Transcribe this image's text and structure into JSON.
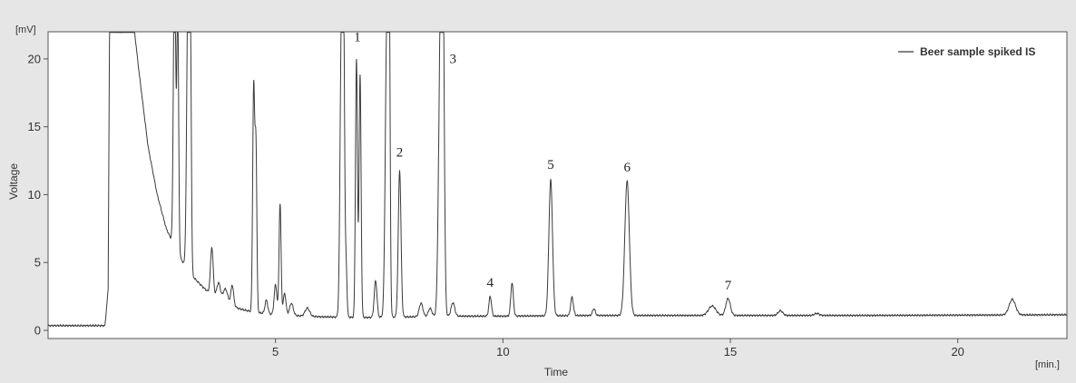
{
  "chart_data": {
    "type": "line",
    "title": "",
    "xlabel": "Time",
    "ylabel": "Voltage",
    "x_unit": "[min.]",
    "y_unit": "[mV]",
    "xlim": [
      0,
      22.4
    ],
    "ylim": [
      -0.6,
      22
    ],
    "x_ticks": [
      5,
      10,
      15,
      20
    ],
    "y_ticks": [
      0,
      5,
      10,
      15,
      20
    ],
    "grid": false,
    "legend_position": "top-right",
    "colors": {
      "line": "#3a3a3a",
      "axis": "#555555",
      "plot_background": "#ffffff",
      "page_background": "#e6e6e6"
    },
    "series": [
      {
        "name": "Beer sample spiked IS",
        "baseline": [
          [
            0,
            0.35
          ],
          [
            1.25,
            0.35
          ],
          [
            1.32,
            3
          ],
          [
            1.35,
            22
          ],
          [
            1.9,
            22
          ],
          [
            2.0,
            19
          ],
          [
            2.2,
            13.5
          ],
          [
            2.4,
            10
          ],
          [
            2.6,
            7.5
          ],
          [
            2.8,
            6
          ],
          [
            3.0,
            4.8
          ],
          [
            3.2,
            3.9
          ],
          [
            3.4,
            3.2
          ],
          [
            3.6,
            2.6
          ],
          [
            3.8,
            2.2
          ],
          [
            4.0,
            1.9
          ],
          [
            4.2,
            1.6
          ],
          [
            4.5,
            1.35
          ],
          [
            5.0,
            1.15
          ],
          [
            6.0,
            1.0
          ],
          [
            7.0,
            0.95
          ],
          [
            8.0,
            1.0
          ],
          [
            9.0,
            1.05
          ],
          [
            10.0,
            1.05
          ],
          [
            12.0,
            1.1
          ],
          [
            15.0,
            1.1
          ],
          [
            18.0,
            1.1
          ],
          [
            22.4,
            1.15
          ]
        ],
        "peaks": [
          {
            "t": 2.78,
            "h": 22,
            "w": 0.025
          },
          {
            "t": 2.85,
            "h": 18,
            "w": 0.02
          },
          {
            "t": 3.08,
            "h": 22,
            "w": 0.03
          },
          {
            "t": 3.13,
            "h": 15,
            "w": 0.02
          },
          {
            "t": 3.6,
            "h": 3.5,
            "w": 0.03
          },
          {
            "t": 3.75,
            "h": 1.2,
            "w": 0.04
          },
          {
            "t": 3.9,
            "h": 1.0,
            "w": 0.05
          },
          {
            "t": 4.05,
            "h": 1.5,
            "w": 0.03
          },
          {
            "t": 4.52,
            "h": 16.5,
            "w": 0.022
          },
          {
            "t": 4.57,
            "h": 12,
            "w": 0.02
          },
          {
            "t": 4.8,
            "h": 1.0,
            "w": 0.03
          },
          {
            "t": 5.0,
            "h": 2.2,
            "w": 0.03
          },
          {
            "t": 5.1,
            "h": 8.2,
            "w": 0.022
          },
          {
            "t": 5.2,
            "h": 1.6,
            "w": 0.03
          },
          {
            "t": 5.35,
            "h": 0.9,
            "w": 0.04
          },
          {
            "t": 5.7,
            "h": 0.6,
            "w": 0.05
          },
          {
            "t": 6.45,
            "h": 22,
            "w": 0.03
          },
          {
            "t": 6.5,
            "h": 18,
            "w": 0.02
          },
          {
            "t": 6.55,
            "h": 4,
            "w": 0.02
          },
          {
            "t": 6.78,
            "h": 19,
            "w": 0.022
          },
          {
            "t": 6.86,
            "h": 17.8,
            "w": 0.022
          },
          {
            "t": 7.2,
            "h": 2.7,
            "w": 0.03
          },
          {
            "t": 7.45,
            "h": 22,
            "w": 0.035
          },
          {
            "t": 7.5,
            "h": 20,
            "w": 0.02
          },
          {
            "t": 7.73,
            "h": 10.8,
            "w": 0.03
          },
          {
            "t": 8.2,
            "h": 1.0,
            "w": 0.04
          },
          {
            "t": 8.4,
            "h": 0.6,
            "w": 0.04
          },
          {
            "t": 8.63,
            "h": 22,
            "w": 0.04
          },
          {
            "t": 8.68,
            "h": 20,
            "w": 0.03
          },
          {
            "t": 8.9,
            "h": 1.0,
            "w": 0.04
          },
          {
            "t": 9.72,
            "h": 1.45,
            "w": 0.028
          },
          {
            "t": 10.2,
            "h": 2.45,
            "w": 0.028
          },
          {
            "t": 11.05,
            "h": 10.0,
            "w": 0.04
          },
          {
            "t": 11.52,
            "h": 1.35,
            "w": 0.03
          },
          {
            "t": 12.0,
            "h": 0.5,
            "w": 0.03
          },
          {
            "t": 12.73,
            "h": 9.9,
            "w": 0.05
          },
          {
            "t": 14.6,
            "h": 0.7,
            "w": 0.08
          },
          {
            "t": 14.95,
            "h": 1.25,
            "w": 0.05
          },
          {
            "t": 16.1,
            "h": 0.35,
            "w": 0.05
          },
          {
            "t": 16.9,
            "h": 0.15,
            "w": 0.05
          },
          {
            "t": 21.2,
            "h": 1.15,
            "w": 0.07
          }
        ]
      }
    ],
    "annotations": [
      {
        "label": "1",
        "x": 6.8,
        "y": 21.3
      },
      {
        "label": "2",
        "x": 7.73,
        "y": 12.8
      },
      {
        "label": "3",
        "x": 8.9,
        "y": 19.7
      },
      {
        "label": "4",
        "x": 9.72,
        "y": 3.2
      },
      {
        "label": "5",
        "x": 11.05,
        "y": 11.9
      },
      {
        "label": "6",
        "x": 12.73,
        "y": 11.7
      },
      {
        "label": "7",
        "x": 14.95,
        "y": 3.0
      }
    ]
  }
}
